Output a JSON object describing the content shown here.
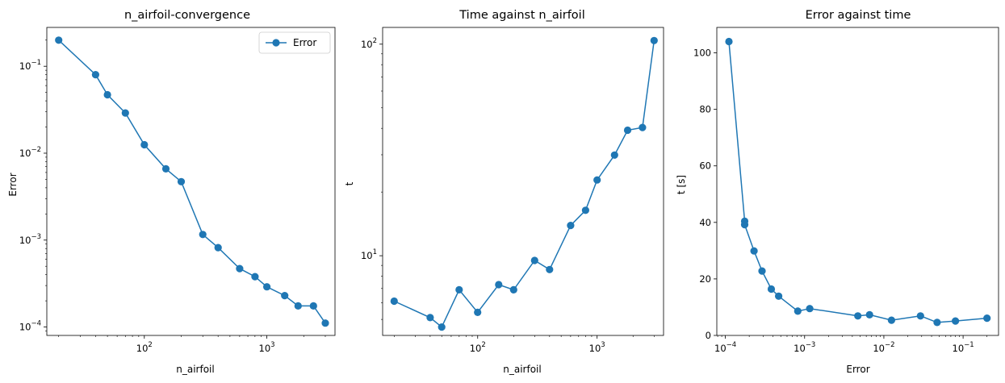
{
  "chart_data": [
    {
      "type": "line",
      "title": "n_airfoil-convergence",
      "xlabel": "n_airfoil",
      "ylabel": "Error",
      "xscale": "log",
      "yscale": "log",
      "xlim": [
        16,
        3600
      ],
      "ylim": [
        8e-05,
        0.28
      ],
      "grid": false,
      "legend": "top-right",
      "xticks": [
        {
          "value": 100,
          "base": "10",
          "exp": "2"
        },
        {
          "value": 1000,
          "base": "10",
          "exp": "3"
        }
      ],
      "yticks": [
        {
          "value": 0.0001,
          "base": "10",
          "exp": "−4"
        },
        {
          "value": 0.001,
          "base": "10",
          "exp": "−3"
        },
        {
          "value": 0.01,
          "base": "10",
          "exp": "−2"
        },
        {
          "value": 0.1,
          "base": "10",
          "exp": "−1"
        }
      ],
      "series": [
        {
          "name": "Error",
          "color": "#1f77b4",
          "x": [
            20,
            40,
            50,
            70,
            100,
            150,
            200,
            300,
            400,
            600,
            800,
            1000,
            1400,
            1800,
            2400,
            3000
          ],
          "y": [
            0.2,
            0.08,
            0.047,
            0.029,
            0.0125,
            0.0066,
            0.0047,
            0.00116,
            0.00082,
            0.00047,
            0.00038,
            0.00029,
            0.00023,
            0.000175,
            0.000175,
            0.000111
          ]
        }
      ]
    },
    {
      "type": "line",
      "title": "Time against n_airfoil",
      "xlabel": "n_airfoil",
      "ylabel": "t",
      "xscale": "log",
      "yscale": "log",
      "xlim": [
        16,
        3600
      ],
      "ylim": [
        4.2,
        120
      ],
      "grid": false,
      "xticks": [
        {
          "value": 100,
          "base": "10",
          "exp": "2"
        },
        {
          "value": 1000,
          "base": "10",
          "exp": "3"
        }
      ],
      "yticks": [
        {
          "value": 10,
          "base": "10",
          "exp": "1"
        },
        {
          "value": 100,
          "base": "10",
          "exp": "2"
        }
      ],
      "series": [
        {
          "color": "#1f77b4",
          "x": [
            20,
            40,
            50,
            70,
            100,
            150,
            200,
            300,
            400,
            600,
            800,
            1000,
            1400,
            1800,
            2400,
            3000
          ],
          "y": [
            6.1,
            5.1,
            4.6,
            6.9,
            5.4,
            7.3,
            6.9,
            9.5,
            8.6,
            13.9,
            16.4,
            22.8,
            29.9,
            39.2,
            40.4,
            104
          ]
        }
      ]
    },
    {
      "type": "line",
      "title": "Error against time",
      "xlabel": "Error",
      "ylabel": "t [s]",
      "xscale": "log",
      "yscale": "linear",
      "xlim": [
        7.8e-05,
        0.28
      ],
      "ylim": [
        0,
        109
      ],
      "grid": false,
      "xticks": [
        {
          "value": 0.0001,
          "base": "10",
          "exp": "−4"
        },
        {
          "value": 0.001,
          "base": "10",
          "exp": "−3"
        },
        {
          "value": 0.01,
          "base": "10",
          "exp": "−2"
        },
        {
          "value": 0.1,
          "base": "10",
          "exp": "−1"
        }
      ],
      "yticks": [
        {
          "value": 0,
          "label": "0"
        },
        {
          "value": 20,
          "label": "20"
        },
        {
          "value": 40,
          "label": "40"
        },
        {
          "value": 60,
          "label": "60"
        },
        {
          "value": 80,
          "label": "80"
        },
        {
          "value": 100,
          "label": "100"
        }
      ],
      "series": [
        {
          "color": "#1f77b4",
          "x": [
            0.000111,
            0.000175,
            0.000175,
            0.00023,
            0.00029,
            0.00038,
            0.00047,
            0.00082,
            0.00116,
            0.0047,
            0.0066,
            0.0125,
            0.029,
            0.047,
            0.08,
            0.2
          ],
          "y": [
            104,
            40.4,
            39.2,
            29.9,
            22.8,
            16.4,
            13.9,
            8.6,
            9.5,
            6.9,
            7.3,
            5.4,
            6.9,
            4.6,
            5.1,
            6.1
          ]
        }
      ]
    }
  ]
}
